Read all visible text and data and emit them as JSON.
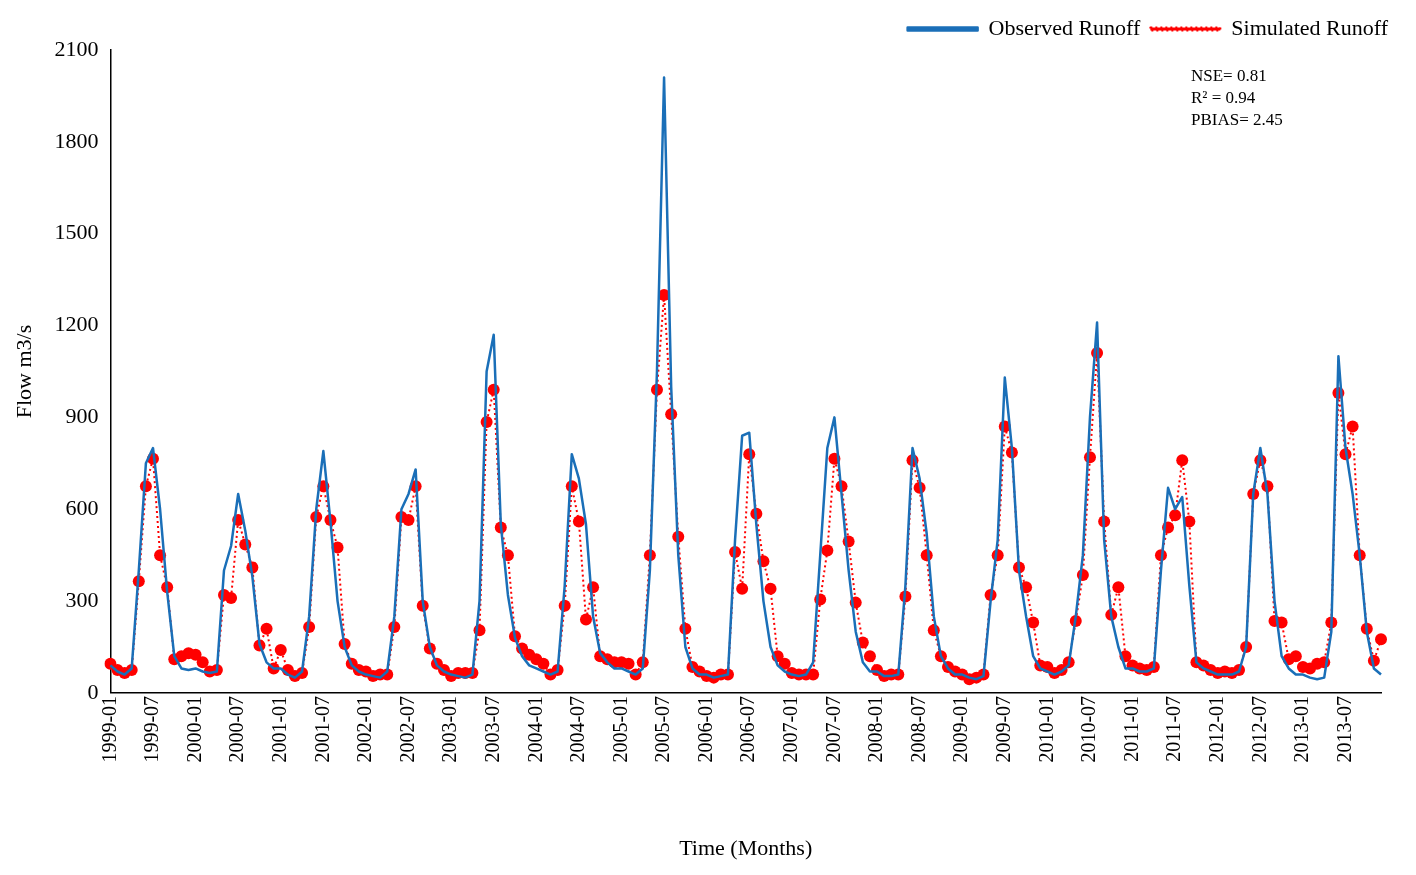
{
  "chart_data": {
    "type": "line",
    "xlabel": "Time (Months)",
    "ylabel": "Flow m3/s",
    "categories": [
      "1999-01",
      null,
      null,
      null,
      null,
      null,
      "1999-07",
      null,
      null,
      null,
      null,
      null,
      "2000-01",
      null,
      null,
      null,
      null,
      null,
      "2000-07",
      null,
      null,
      null,
      null,
      null,
      "2001-01",
      null,
      null,
      null,
      null,
      null,
      "2001-07",
      null,
      null,
      null,
      null,
      null,
      "2002-01",
      null,
      null,
      null,
      null,
      null,
      "2002-07",
      null,
      null,
      null,
      null,
      null,
      "2003-01",
      null,
      null,
      null,
      null,
      null,
      "2003-07",
      null,
      null,
      null,
      null,
      null,
      "2004-01",
      null,
      null,
      null,
      null,
      null,
      "2004-07",
      null,
      null,
      null,
      null,
      null,
      "2005-01",
      null,
      null,
      null,
      null,
      null,
      "2005-07",
      null,
      null,
      null,
      null,
      null,
      "2006-01",
      null,
      null,
      null,
      null,
      null,
      "2006-07",
      null,
      null,
      null,
      null,
      null,
      "2007-01",
      null,
      null,
      null,
      null,
      null,
      "2007-07",
      null,
      null,
      null,
      null,
      null,
      "2008-01",
      null,
      null,
      null,
      null,
      null,
      "2008-07",
      null,
      null,
      null,
      null,
      null,
      "2009-01",
      null,
      null,
      null,
      null,
      null,
      "2009-07",
      null,
      null,
      null,
      null,
      null,
      "2010-01",
      null,
      null,
      null,
      null,
      null,
      "2010-07",
      null,
      null,
      null,
      null,
      null,
      "2011-01",
      null,
      null,
      null,
      null,
      null,
      "2011-07",
      null,
      null,
      null,
      null,
      null,
      "2012-01",
      null,
      null,
      null,
      null,
      null,
      "2012-07",
      null,
      null,
      null,
      null,
      null,
      "2013-01",
      null,
      null,
      null,
      null,
      null,
      "2013-07",
      null,
      null,
      null,
      null,
      null
    ],
    "series": [
      {
        "name": "Observed Runoff",
        "color": "#1a6fb8",
        "marker": "none",
        "line_style": "solid",
        "values": [
          90,
          70,
          60,
          80,
          400,
          750,
          800,
          600,
          330,
          120,
          80,
          75,
          80,
          70,
          65,
          70,
          400,
          480,
          650,
          530,
          380,
          160,
          100,
          80,
          80,
          60,
          50,
          70,
          250,
          600,
          790,
          560,
          300,
          150,
          90,
          70,
          60,
          55,
          50,
          70,
          250,
          600,
          650,
          730,
          300,
          150,
          90,
          70,
          60,
          55,
          50,
          60,
          300,
          1050,
          1170,
          550,
          320,
          180,
          120,
          90,
          80,
          70,
          60,
          70,
          350,
          780,
          700,
          550,
          250,
          130,
          100,
          80,
          80,
          70,
          60,
          80,
          400,
          1050,
          2010,
          1000,
          450,
          150,
          80,
          60,
          60,
          50,
          55,
          60,
          500,
          840,
          850,
          550,
          300,
          150,
          90,
          70,
          60,
          55,
          60,
          100,
          450,
          800,
          900,
          650,
          400,
          200,
          100,
          70,
          70,
          55,
          55,
          60,
          350,
          800,
          700,
          520,
          250,
          120,
          80,
          60,
          60,
          50,
          45,
          55,
          300,
          500,
          1030,
          800,
          400,
          250,
          120,
          80,
          70,
          60,
          70,
          90,
          250,
          450,
          900,
          1210,
          500,
          250,
          150,
          80,
          80,
          70,
          70,
          80,
          400,
          670,
          600,
          640,
          350,
          100,
          80,
          70,
          60,
          60,
          60,
          70,
          150,
          650,
          800,
          650,
          300,
          120,
          80,
          60,
          60,
          50,
          45,
          50,
          200,
          1100,
          800,
          650,
          450,
          200,
          80,
          60
        ]
      },
      {
        "name": "Simulated Runoff",
        "color": "#ff0000",
        "marker": "circle",
        "line_style": "dotted",
        "values": [
          95,
          75,
          65,
          75,
          365,
          675,
          765,
          450,
          345,
          110,
          120,
          130,
          125,
          100,
          70,
          75,
          320,
          310,
          565,
          485,
          410,
          155,
          210,
          80,
          140,
          75,
          55,
          65,
          215,
          575,
          675,
          565,
          475,
          160,
          95,
          75,
          70,
          55,
          60,
          60,
          215,
          575,
          565,
          675,
          285,
          145,
          95,
          75,
          55,
          65,
          65,
          65,
          205,
          885,
          990,
          540,
          450,
          185,
          145,
          125,
          110,
          95,
          60,
          75,
          285,
          675,
          560,
          240,
          345,
          120,
          110,
          100,
          100,
          95,
          60,
          100,
          450,
          990,
          1300,
          910,
          510,
          210,
          85,
          70,
          55,
          50,
          60,
          60,
          460,
          340,
          780,
          585,
          430,
          340,
          120,
          95,
          65,
          60,
          60,
          60,
          305,
          465,
          765,
          675,
          495,
          295,
          165,
          120,
          75,
          55,
          60,
          60,
          315,
          760,
          670,
          450,
          205,
          120,
          85,
          70,
          60,
          45,
          50,
          60,
          320,
          450,
          870,
          785,
          410,
          345,
          230,
          90,
          85,
          65,
          75,
          100,
          235,
          385,
          770,
          1110,
          560,
          255,
          345,
          120,
          90,
          80,
          75,
          85,
          450,
          540,
          580,
          760,
          560,
          100,
          90,
          75,
          65,
          70,
          65,
          75,
          150,
          650,
          760,
          675,
          235,
          230,
          110,
          120,
          85,
          80,
          95,
          100,
          230,
          980,
          780,
          870,
          450,
          210,
          105,
          175
        ]
      }
    ],
    "ylim": [
      0,
      2100
    ],
    "yticks": [
      0,
      300,
      600,
      900,
      1200,
      1500,
      1800,
      2100
    ],
    "grid": false,
    "legend": "top right",
    "annotations": [
      "NSE= 0.81",
      "R² = 0.94",
      "PBIAS= 2.45"
    ]
  }
}
